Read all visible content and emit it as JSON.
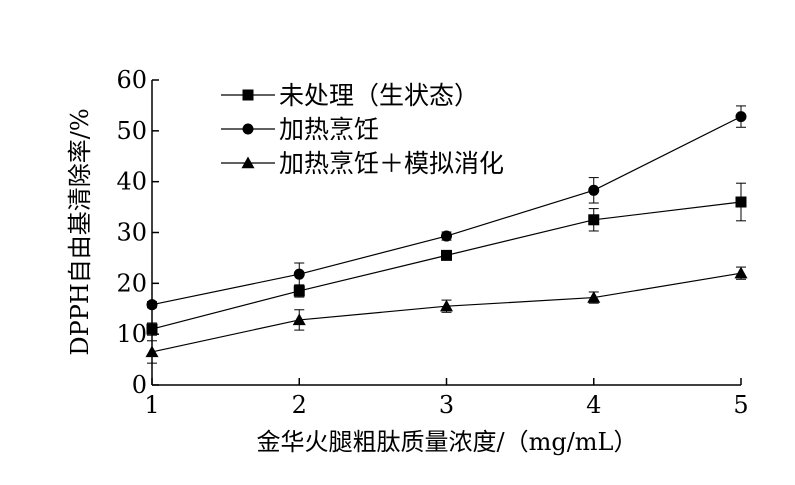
{
  "chart_data": {
    "type": "line",
    "xlabel": "金华火腿粗肽质量浓度/（mg/mL）",
    "ylabel": "DPPH自由基清除率/%",
    "x": [
      1,
      2,
      3,
      4,
      5
    ],
    "xlim": [
      1,
      5
    ],
    "ylim": [
      0,
      60
    ],
    "x_ticks": [
      "1",
      "2",
      "3",
      "4",
      "5"
    ],
    "y_ticks": [
      "0",
      "10",
      "20",
      "30",
      "40",
      "50",
      "60"
    ],
    "grid": false,
    "legend_position": "top-left",
    "series": [
      {
        "name": "未处理（生状态）",
        "marker": "square",
        "values": [
          11,
          18.5,
          25.5,
          32.5,
          36
        ],
        "errors": [
          1.2,
          1.2,
          0.8,
          2.2,
          3.7
        ]
      },
      {
        "name": "加热烹饪",
        "marker": "circle",
        "values": [
          15.8,
          21.8,
          29.3,
          38.3,
          52.8
        ],
        "errors": [
          0.6,
          2.2,
          0.8,
          2.5,
          2.1
        ]
      },
      {
        "name": "加热烹饪＋模拟消化",
        "marker": "triangle",
        "values": [
          6.5,
          12.8,
          15.5,
          17.2,
          22
        ],
        "errors": [
          2.2,
          2.0,
          1.2,
          1.1,
          1.2
        ]
      }
    ]
  }
}
